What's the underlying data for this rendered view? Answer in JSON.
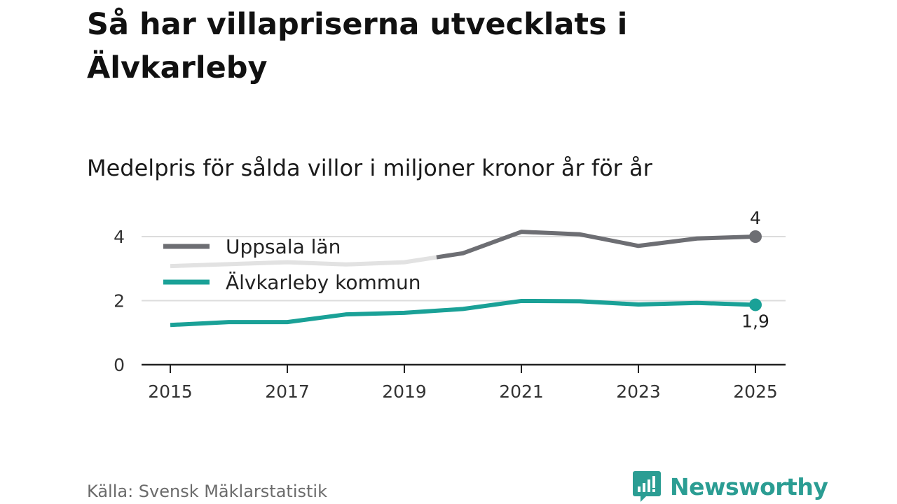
{
  "title": "Så har villapriserna utvecklats i Älvkarleby",
  "subtitle": "Medelpris för sålda villor i miljoner kronor år för år",
  "source": "Källa: Svensk Mäklarstatistik",
  "brand": {
    "name": "Newsworthy",
    "icon": "newsworthy-logo-icon",
    "color": "#2b9d93"
  },
  "chart_data": {
    "type": "line",
    "x": [
      2015,
      2016,
      2017,
      2018,
      2019,
      2020,
      2021,
      2022,
      2023,
      2024,
      2025
    ],
    "x_tick_labels": [
      "2015",
      "2017",
      "2019",
      "2021",
      "2023",
      "2025"
    ],
    "y_tick_labels": [
      "0",
      "2",
      "4"
    ],
    "ylim": [
      0,
      4.4
    ],
    "grid": true,
    "legend_position": "top-left",
    "series": [
      {
        "name": "Uppsala län",
        "color": "#6d6e73",
        "faded_color": "#e2e2e2",
        "faded_until": 2019.55,
        "values": [
          3.08,
          3.14,
          3.2,
          3.13,
          3.2,
          3.48,
          4.15,
          4.07,
          3.71,
          3.94,
          4.0
        ],
        "end_label": "4"
      },
      {
        "name": "Älvkarleby kommun",
        "color": "#1aa197",
        "values": [
          1.24,
          1.33,
          1.33,
          1.57,
          1.62,
          1.74,
          1.99,
          1.98,
          1.88,
          1.93,
          1.87
        ],
        "end_label": "1,9"
      }
    ]
  }
}
